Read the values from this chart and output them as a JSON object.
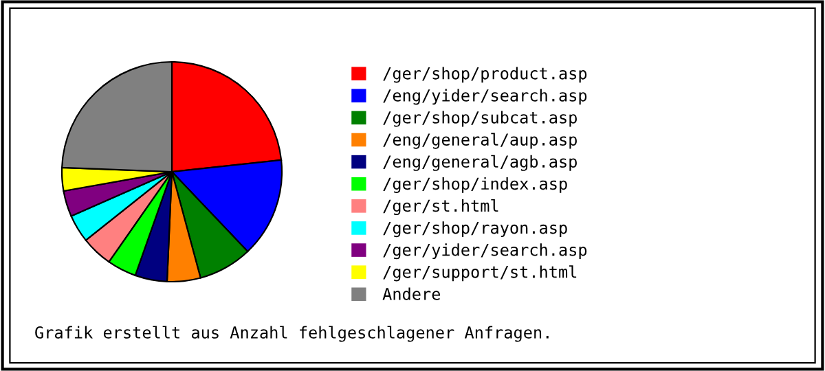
{
  "chart_data": {
    "type": "pie",
    "categories": [
      "/ger/shop/product.asp",
      "/eng/yider/search.asp",
      "/ger/shop/subcat.asp",
      "/eng/general/aup.asp",
      "/eng/general/agb.asp",
      "/ger/shop/index.asp",
      "/ger/st.html",
      "/ger/shop/rayon.asp",
      "/ger/yider/search.asp",
      "/ger/support/st.html",
      "Andere"
    ],
    "values": [
      23.3,
      14.6,
      7.9,
      4.9,
      4.7,
      4.3,
      4.6,
      4.1,
      3.8,
      3.4,
      24.4
    ],
    "colors": [
      "#ff0000",
      "#0000ff",
      "#008000",
      "#ff8000",
      "#000080",
      "#00ff00",
      "#ff8080",
      "#00ffff",
      "#800080",
      "#ffff00",
      "#808080"
    ],
    "legend": "right",
    "annotations": [
      "Grafik erstellt aus Anzahl fehlgeschlagener Anfragen."
    ]
  }
}
